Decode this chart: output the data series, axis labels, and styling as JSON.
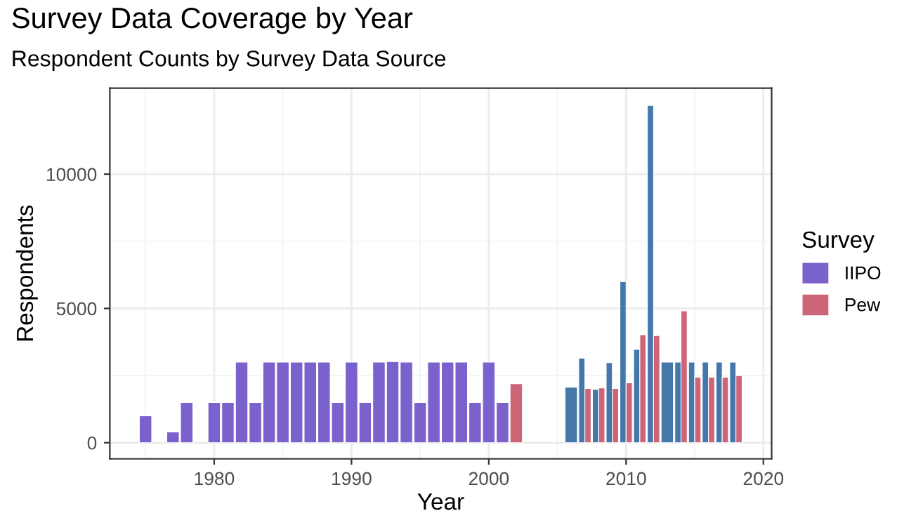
{
  "chart_data": {
    "type": "bar",
    "title": "Survey Data Coverage by Year",
    "subtitle": "Respondent Counts by Survey Data Source",
    "xlabel": "Year",
    "ylabel": "Respondents",
    "legend_title": "Survey",
    "x": [
      1975,
      1977,
      1978,
      1980,
      1981,
      1982,
      1983,
      1984,
      1985,
      1986,
      1987,
      1988,
      1989,
      1990,
      1991,
      1992,
      1993,
      1994,
      1995,
      1996,
      1997,
      1998,
      1999,
      2000,
      2001,
      2002,
      2006,
      2007,
      2008,
      2009,
      2010,
      2011,
      2012,
      2013,
      2014,
      2015,
      2016,
      2017,
      2018
    ],
    "series": [
      {
        "color": "#4477aa",
        "values": [
          null,
          null,
          null,
          null,
          null,
          null,
          null,
          null,
          null,
          null,
          null,
          null,
          null,
          null,
          null,
          null,
          null,
          null,
          null,
          null,
          null,
          null,
          null,
          null,
          null,
          null,
          2070,
          3150,
          1990,
          2980,
          6000,
          3480,
          12560,
          3000,
          3000,
          3000,
          3000,
          3000,
          3000
        ]
      },
      {
        "name": "IIPO",
        "color": "#7b61cc",
        "values": [
          1000,
          400,
          1500,
          1500,
          1500,
          3000,
          1500,
          3000,
          3000,
          3000,
          3000,
          3000,
          1500,
          3000,
          1500,
          3000,
          3020,
          3000,
          1500,
          3000,
          3000,
          3000,
          1500,
          3000,
          1500,
          null,
          null,
          null,
          null,
          null,
          null,
          null,
          null,
          null,
          null,
          null,
          null,
          null,
          null
        ]
      },
      {
        "name": "Pew",
        "color": "#cc6677",
        "values": [
          null,
          null,
          null,
          null,
          null,
          null,
          null,
          null,
          null,
          null,
          null,
          null,
          null,
          null,
          null,
          null,
          null,
          null,
          null,
          null,
          null,
          null,
          null,
          null,
          null,
          2200,
          null,
          2020,
          2040,
          2020,
          2230,
          4020,
          3990,
          null,
          4910,
          2440,
          2440,
          2440,
          2500
        ]
      }
    ],
    "xlim": [
      1972.4,
      2020.6
    ],
    "ylim": [
      -600,
      13200
    ],
    "xticks": [
      1980,
      1990,
      2000,
      2010,
      2020
    ],
    "yticks": [
      0,
      5000,
      10000
    ],
    "grid": true,
    "legend": "right"
  }
}
